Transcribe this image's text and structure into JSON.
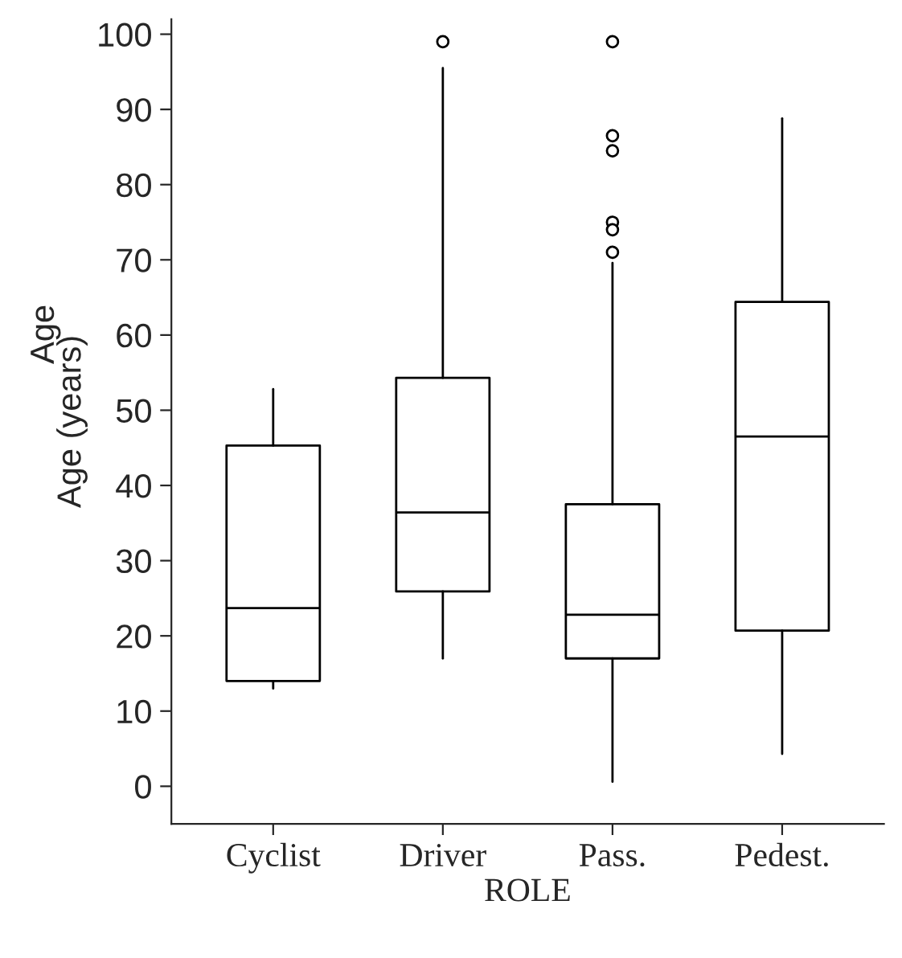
{
  "chart_data": {
    "type": "box",
    "xlabel": "ROLE",
    "ylabel": "Age (years)",
    "annotations": [
      "Age"
    ],
    "categories": [
      "Cyclist",
      "Driver",
      "Pass.",
      "Pedest."
    ],
    "boxes": [
      {
        "low": 13,
        "q1": 14,
        "median": 23.7,
        "q3": 45.3,
        "high": 52.8
      },
      {
        "low": 17,
        "q1": 25.9,
        "median": 36.4,
        "q3": 54.3,
        "high": 95.5,
        "outliers": [
          99
        ]
      },
      {
        "low": 0.6,
        "q1": 17,
        "median": 22.8,
        "q3": 37.5,
        "high": 69.6,
        "outliers": [
          99,
          86.5,
          84.5,
          75,
          74,
          71
        ]
      },
      {
        "low": 4.3,
        "q1": 20.7,
        "median": 46.5,
        "q3": 64.4,
        "high": 88.8
      }
    ],
    "ylim": [
      -5,
      102
    ],
    "yticks": [
      0,
      10,
      20,
      30,
      40,
      50,
      60,
      70,
      80,
      90,
      100
    ],
    "grid": false
  }
}
